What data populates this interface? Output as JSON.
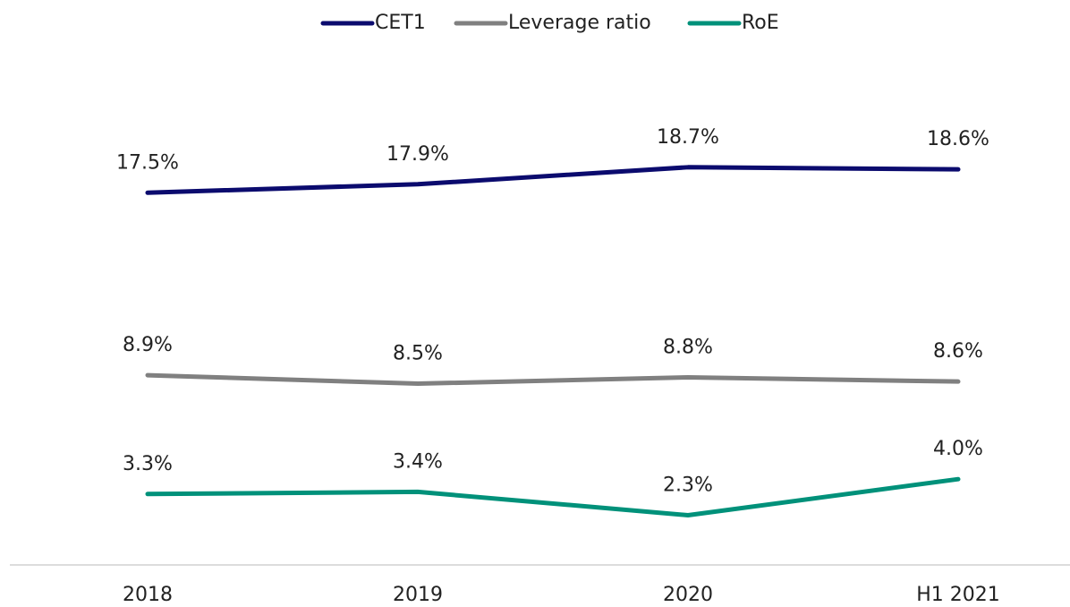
{
  "chart_data": {
    "type": "line",
    "categories": [
      "2018",
      "2019",
      "2020",
      "H1 2021"
    ],
    "series": [
      {
        "name": "CET1",
        "color": "#0b0b6e",
        "values": [
          17.5,
          17.9,
          18.7,
          18.6
        ],
        "value_labels": [
          "17.5%",
          "17.9%",
          "18.7%",
          "18.6%"
        ]
      },
      {
        "name": "Leverage ratio",
        "color": "#808080",
        "values": [
          8.9,
          8.5,
          8.8,
          8.6
        ],
        "value_labels": [
          "8.9%",
          "8.5%",
          "8.8%",
          "8.6%"
        ]
      },
      {
        "name": "RoE",
        "color": "#00917a",
        "values": [
          3.3,
          3.4,
          2.3,
          4.0
        ],
        "value_labels": [
          "3.3%",
          "3.4%",
          "2.3%",
          "4.0%"
        ]
      }
    ],
    "ylim": [
      0,
      20
    ],
    "legend": "top"
  }
}
